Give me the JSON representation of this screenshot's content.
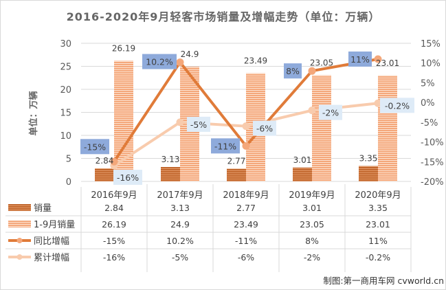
{
  "chart_data": {
    "type": "bar",
    "title": "2016-2020年9月轻客市场销量及增幅走势（单位：万辆）",
    "ylabel": "单位：万辆",
    "categories": [
      "2016年9月",
      "2017年9月",
      "2018年9月",
      "2019年9月",
      "2020年9月"
    ],
    "ylim": [
      0,
      30
    ],
    "yticks": [
      "0",
      "5",
      "10",
      "15",
      "20",
      "25",
      "30"
    ],
    "y2lim": [
      -20,
      15
    ],
    "y2ticks": [
      "-20%",
      "-15%",
      "-10%",
      "-5%",
      "0%",
      "5%",
      "10%",
      "15%"
    ],
    "grid": true,
    "legend": "data-table",
    "series": [
      {
        "name": "销量",
        "type": "bar",
        "values": [
          2.84,
          3.13,
          2.77,
          3.01,
          3.35
        ],
        "labels": [
          "2.84",
          "3.13",
          "2.77",
          "3.01",
          "3.35"
        ],
        "color": "#c0652b"
      },
      {
        "name": "1-9月销量",
        "type": "bar",
        "values": [
          26.19,
          24.9,
          23.49,
          23.05,
          23.01
        ],
        "labels": [
          "26.19",
          "24.9",
          "23.49",
          "23.05",
          "23.01"
        ],
        "color": "#f4b183"
      },
      {
        "name": "同比增幅",
        "type": "line",
        "axis": "right",
        "values": [
          -15,
          10.2,
          -11,
          8,
          11
        ],
        "labels": [
          "-15%",
          "10.2%",
          "-11%",
          "8%",
          "11%"
        ],
        "color": "#e07b39"
      },
      {
        "name": "累计增幅",
        "type": "line",
        "axis": "right",
        "values": [
          -16,
          -5,
          -6,
          -2,
          -0.2
        ],
        "labels": [
          "-16%",
          "-5%",
          "-6%",
          "-2%",
          "-0.2%"
        ],
        "color": "#f8cbad"
      }
    ],
    "source": "制图:第一商用车网 cvworld.cn"
  }
}
